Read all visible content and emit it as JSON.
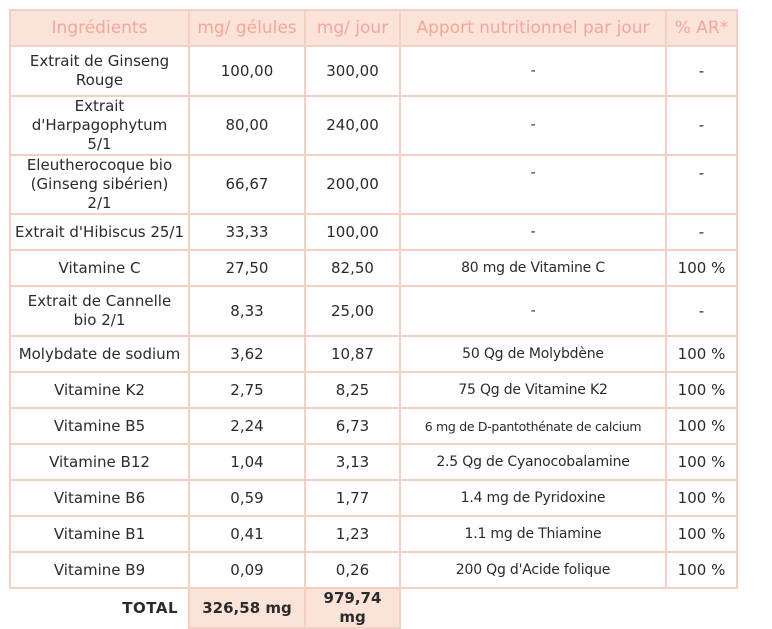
{
  "headers": {
    "ingredients": "Ingrédients",
    "mg_gelules": "mg/ gélules",
    "mg_jour": "mg/ jour",
    "apport": "Apport nutritionnel par jour",
    "ar": "% AR*"
  },
  "rows": [
    {
      "name": "Extrait de Ginseng Rouge",
      "mg_gelule": "100,00",
      "mg_jour": "300,00",
      "apport": "-",
      "ar": "-"
    },
    {
      "name": "Extrait d'Harpagophytum 5/1",
      "mg_gelule": "80,00",
      "mg_jour": "240,00",
      "apport": "-",
      "ar": "-"
    },
    {
      "name": "Eleutherocoque bio (Ginseng sibérien) 2/1",
      "mg_gelule": "66,67",
      "mg_jour": "200,00",
      "apport": "-",
      "ar": "-"
    },
    {
      "name": "Extrait d'Hibiscus 25/1",
      "mg_gelule": "33,33",
      "mg_jour": "100,00",
      "apport": "-",
      "ar": "-"
    },
    {
      "name": "Vitamine C",
      "mg_gelule": "27,50",
      "mg_jour": "82,50",
      "apport": "80 mg de Vitamine C",
      "ar": "100 %"
    },
    {
      "name": "Extrait de Cannelle bio 2/1",
      "mg_gelule": "8,33",
      "mg_jour": "25,00",
      "apport": "-",
      "ar": "-"
    },
    {
      "name": "Molybdate de sodium",
      "mg_gelule": "3,62",
      "mg_jour": "10,87",
      "apport": "50 Qg de Molybdène",
      "ar": "100 %"
    },
    {
      "name": "Vitamine K2",
      "mg_gelule": "2,75",
      "mg_jour": "8,25",
      "apport": "75 Qg de Vitamine K2",
      "ar": "100 %"
    },
    {
      "name": "Vitamine B5",
      "mg_gelule": "2,24",
      "mg_jour": "6,73",
      "apport": "6 mg de D-pantothénate de calcium",
      "ar": "100 %"
    },
    {
      "name": "Vitamine B12",
      "mg_gelule": "1,04",
      "mg_jour": "3,13",
      "apport": "2.5 Qg de Cyanocobalamine",
      "ar": "100 %"
    },
    {
      "name": "Vitamine B6",
      "mg_gelule": "0,59",
      "mg_jour": "1,77",
      "apport": "1.4 mg de Pyridoxine",
      "ar": "100 %"
    },
    {
      "name": "Vitamine B1",
      "mg_gelule": "0,41",
      "mg_jour": "1,23",
      "apport": "1.1 mg de Thiamine",
      "ar": "100 %"
    },
    {
      "name": "Vitamine B9",
      "mg_gelule": "0,09",
      "mg_jour": "0,26",
      "apport": "200 Qg d'Acide folique",
      "ar": "100 %"
    }
  ],
  "total": {
    "label": "TOTAL",
    "mg_gelule": "326,58 mg",
    "mg_jour": "979,74 mg"
  },
  "colors": {
    "border": "#f4cfc3",
    "header_bg": "#fbe3da",
    "header_text": "#f2a79a"
  }
}
